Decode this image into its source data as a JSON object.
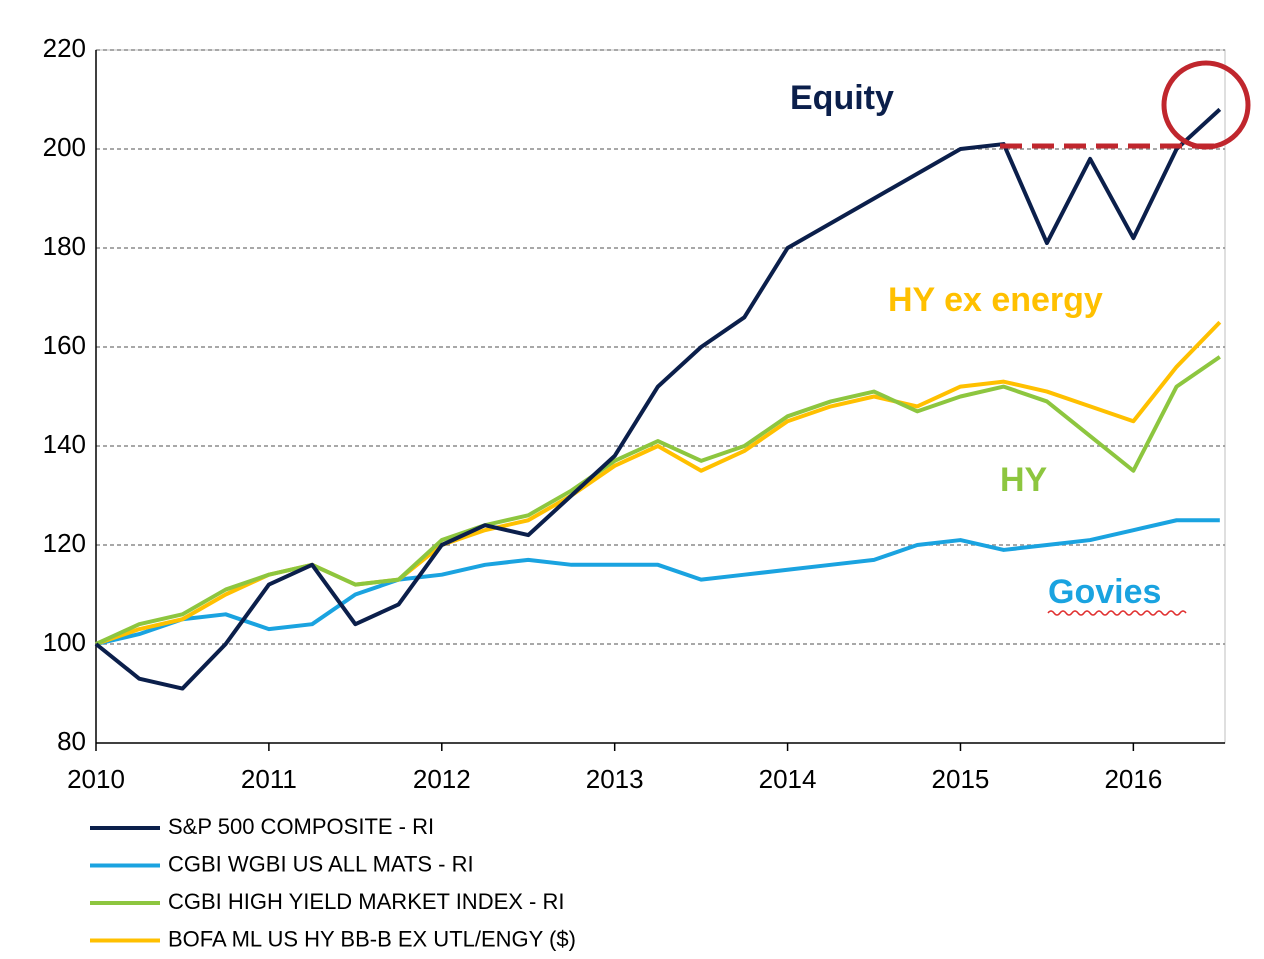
{
  "chart_data": {
    "type": "line",
    "xlim": [
      2010,
      2016.53
    ],
    "xticks": [
      2010,
      2011,
      2012,
      2013,
      2014,
      2015,
      2016
    ],
    "ylim": [
      80,
      220
    ],
    "yticks": [
      80,
      100,
      120,
      140,
      160,
      180,
      200,
      220
    ],
    "grid": true,
    "legend": "bottom",
    "annotations": [
      "Equity",
      "HY ex energy",
      "HY",
      "Govies"
    ],
    "x": [
      2010,
      2010.25,
      2010.5,
      2010.75,
      2011,
      2011.25,
      2011.5,
      2011.75,
      2012,
      2012.25,
      2012.5,
      2012.75,
      2013,
      2013.25,
      2013.5,
      2013.75,
      2014,
      2014.25,
      2014.5,
      2014.75,
      2015,
      2015.25,
      2015.5,
      2015.75,
      2016,
      2016.25,
      2016.5
    ],
    "series": [
      {
        "name": "S&P 500 COMPOSITE - RI",
        "color": "#0b1f4b",
        "values": [
          100,
          93,
          91,
          100,
          112,
          116,
          104,
          108,
          120,
          124,
          122,
          130,
          138,
          152,
          160,
          166,
          180,
          185,
          190,
          195,
          200,
          201,
          181,
          198,
          182,
          200,
          208
        ]
      },
      {
        "name": "CGBI WGBI US ALL MATS - RI",
        "color": "#1aa3e0",
        "values": [
          100,
          102,
          105,
          106,
          103,
          104,
          110,
          113,
          114,
          116,
          117,
          116,
          116,
          116,
          113,
          114,
          115,
          116,
          117,
          120,
          121,
          119,
          120,
          121,
          123,
          125,
          125
        ]
      },
      {
        "name": "CGBI HIGH YIELD MARKET INDEX - RI",
        "color": "#8dc63f",
        "values": [
          100,
          104,
          106,
          111,
          114,
          116,
          112,
          113,
          121,
          124,
          126,
          131,
          137,
          141,
          137,
          140,
          146,
          149,
          151,
          147,
          150,
          152,
          149,
          142,
          135,
          152,
          158
        ]
      },
      {
        "name": "BOFA ML US HY BB-B EX UTL/ENGY ($)",
        "color": "#ffc000",
        "values": [
          100,
          103,
          105,
          110,
          114,
          116,
          112,
          113,
          120,
          123,
          125,
          130,
          136,
          140,
          135,
          139,
          145,
          148,
          150,
          148,
          152,
          153,
          151,
          148,
          145,
          156,
          165
        ]
      }
    ]
  }
}
